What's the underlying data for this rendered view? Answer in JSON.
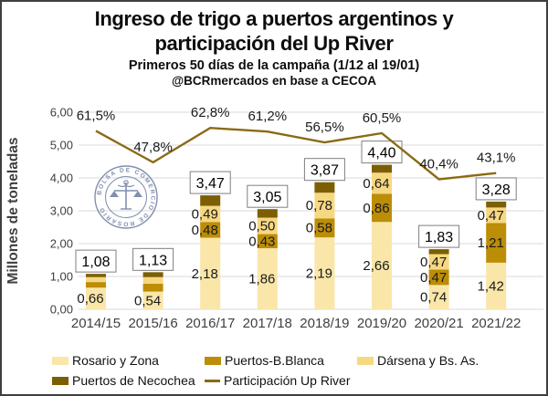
{
  "header": {
    "title": "Ingreso de trigo a puertos argentinos y participación del Up River",
    "subtitle": "Primeros 50 días de la campaña (1/12 al 19/01)",
    "attribution": "@BCRmercados en base a CECOA"
  },
  "watermark": {
    "text": "BOLSA DE COMERCIO DE ROSARIO",
    "color": "#6c7ca0"
  },
  "legend": {
    "items": [
      {
        "label": "Rosario y Zona"
      },
      {
        "label": "Puertos-B.Blanca"
      },
      {
        "label": "Dársena y Bs. As."
      },
      {
        "label": "Puertos de Necochea"
      },
      {
        "label": "Participación Up River"
      }
    ]
  },
  "chart_data": {
    "type": "bar",
    "subtype": "stacked-bars-with-percentage-line",
    "title": "Ingreso de trigo a puertos argentinos y participación del Up River",
    "ylabel": "Millones de toneladas",
    "xlabel": "",
    "ylim": [
      0,
      6
    ],
    "yticks": [
      "0,00",
      "1,00",
      "2,00",
      "3,00",
      "4,00",
      "5,00",
      "6,00"
    ],
    "grid": true,
    "legend_position": "bottom",
    "categories": [
      "2014/15",
      "2015/16",
      "2016/17",
      "2017/18",
      "2018/19",
      "2019/20",
      "2020/21",
      "2021/22"
    ],
    "series": [
      {
        "name": "Rosario y Zona",
        "color": "#fae6a8",
        "values": [
          0.66,
          0.54,
          2.18,
          1.86,
          2.19,
          2.66,
          0.74,
          1.42
        ],
        "labels": [
          "0,66",
          "0,54",
          "2,18",
          "1,86",
          "2,19",
          "2,66",
          "0,74",
          "1,42"
        ]
      },
      {
        "name": "Puertos-B.Blanca",
        "color": "#bc8d06",
        "values": [
          0.17,
          0.24,
          0.48,
          0.43,
          0.58,
          0.86,
          0.47,
          1.21
        ],
        "labels": [
          null,
          null,
          "0,48",
          "0,43",
          "0,58",
          "0,86",
          "0,47",
          "1,21"
        ]
      },
      {
        "name": "Dársena y Bs. As.",
        "color": "#f7d882",
        "values": [
          0.15,
          0.2,
          0.49,
          0.5,
          0.78,
          0.64,
          0.47,
          0.47
        ],
        "labels": [
          null,
          null,
          "0,49",
          "0,50",
          "0,78",
          "0,64",
          "0,47",
          "0,47"
        ]
      },
      {
        "name": "Puertos de Necochea",
        "color": "#7c5f04",
        "values": [
          0.1,
          0.15,
          0.32,
          0.26,
          0.32,
          0.24,
          0.15,
          0.18
        ],
        "labels": [
          null,
          null,
          null,
          null,
          null,
          null,
          null,
          null
        ]
      }
    ],
    "totals": [
      "1,08",
      "1,13",
      "3,47",
      "3,05",
      "3,87",
      "4,40",
      "1,83",
      "3,28"
    ],
    "totals_numeric": [
      1.08,
      1.13,
      3.47,
      3.05,
      3.87,
      4.4,
      1.83,
      3.28
    ],
    "line": {
      "name": "Participación Up River",
      "color": "#8a6a16",
      "values_pct": [
        61.5,
        47.8,
        62.8,
        61.2,
        56.5,
        60.5,
        40.4,
        43.1
      ],
      "labels": [
        "61,5%",
        "47,8%",
        "62,8%",
        "61,2%",
        "56,5%",
        "60,5%",
        "40,4%",
        "43,1%"
      ]
    },
    "colors": {
      "gridline": "#d9d9d9",
      "axis_text": "#404040",
      "label_text": "#1a1a1a",
      "total_box_border": "#7f7f7f",
      "total_box_fill": "#ffffff"
    }
  }
}
